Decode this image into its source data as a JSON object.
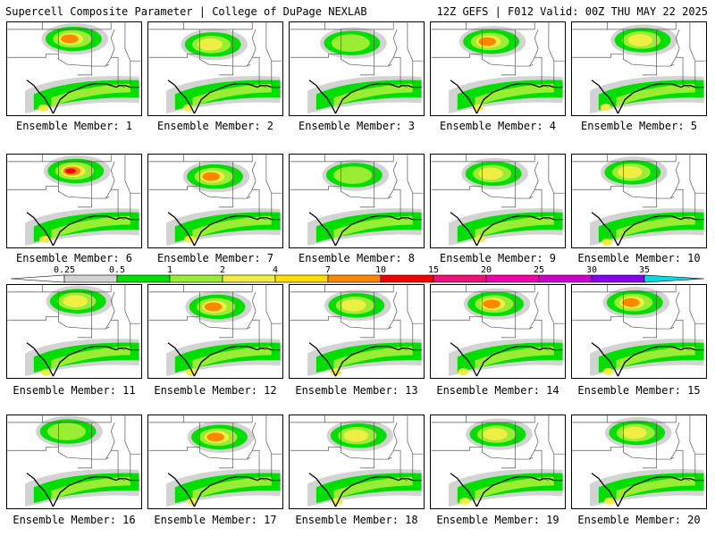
{
  "header": {
    "title": "Supercell Composite Parameter | College of DuPage NEXLAB",
    "run_info": "12Z GEFS | F012 Valid: 00Z THU MAY 22 2025"
  },
  "legend": {
    "thresholds": [
      "0.25",
      "0.5",
      "1",
      "2",
      "4",
      "7",
      "10",
      "15",
      "20",
      "25",
      "30",
      "35"
    ],
    "colors": [
      "#d3d3d3",
      "#00dd00",
      "#99ee33",
      "#eeee44",
      "#ffdd00",
      "#ff8800",
      "#ee0000",
      "#ee1177",
      "#ee00aa",
      "#cc00cc",
      "#8800ee",
      "#aa66dd",
      "#00dddd"
    ]
  },
  "panels": [
    {
      "label": "Ensemble Member: 1"
    },
    {
      "label": "Ensemble Member: 2"
    },
    {
      "label": "Ensemble Member: 3"
    },
    {
      "label": "Ensemble Member: 4"
    },
    {
      "label": "Ensemble Member: 5"
    },
    {
      "label": "Ensemble Member: 6"
    },
    {
      "label": "Ensemble Member: 7"
    },
    {
      "label": "Ensemble Member: 8"
    },
    {
      "label": "Ensemble Member: 9"
    },
    {
      "label": "Ensemble Member: 10"
    },
    {
      "label": "Ensemble Member: 11"
    },
    {
      "label": "Ensemble Member: 12"
    },
    {
      "label": "Ensemble Member: 13"
    },
    {
      "label": "Ensemble Member: 14"
    },
    {
      "label": "Ensemble Member: 15"
    },
    {
      "label": "Ensemble Member: 16"
    },
    {
      "label": "Ensemble Member: 17"
    },
    {
      "label": "Ensemble Member: 18"
    },
    {
      "label": "Ensemble Member: 19"
    },
    {
      "label": "Ensemble Member: 20"
    }
  ]
}
